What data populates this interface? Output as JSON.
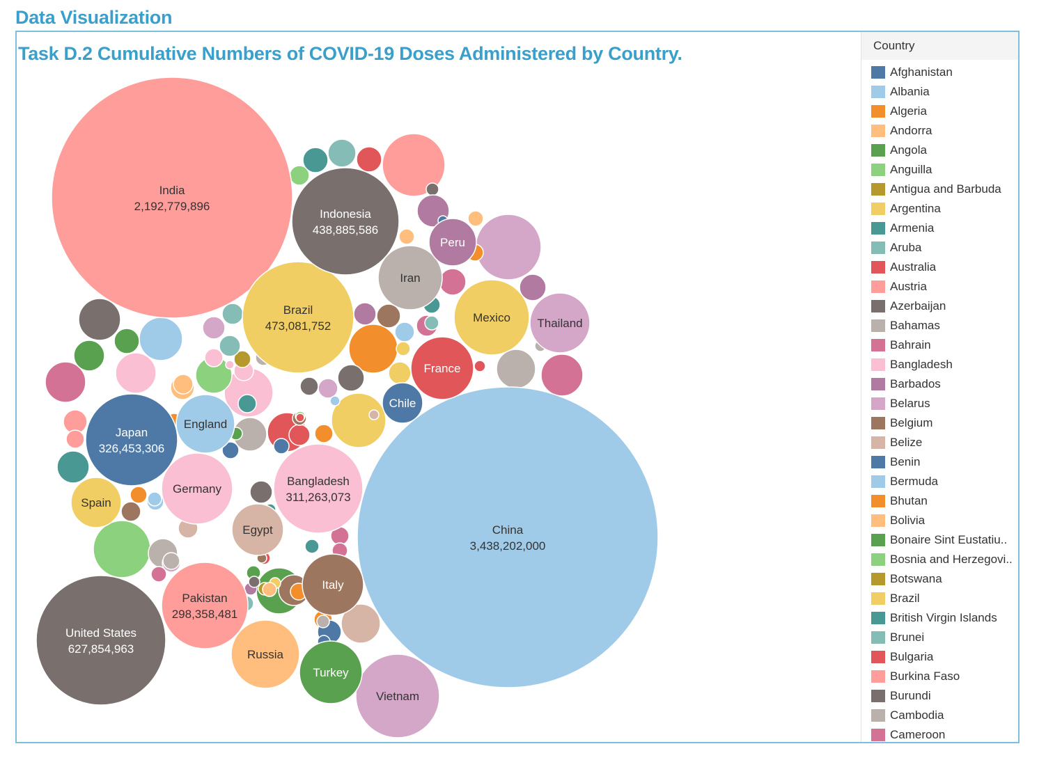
{
  "section_title": "Data Visualization",
  "chart_data": {
    "type": "bubble",
    "title": "Task D.2 Cumulative Numbers of COVID-19 Doses Administered by Country.",
    "legend_title": "Country",
    "legend_placement": "right",
    "legend": [
      {
        "name": "Afghanistan",
        "color": "#4e79a7"
      },
      {
        "name": "Albania",
        "color": "#a0cbe8"
      },
      {
        "name": "Algeria",
        "color": "#f28e2b"
      },
      {
        "name": "Andorra",
        "color": "#ffbe7d"
      },
      {
        "name": "Angola",
        "color": "#59a14f"
      },
      {
        "name": "Anguilla",
        "color": "#8cd17d"
      },
      {
        "name": "Antigua and Barbuda",
        "color": "#b6992d"
      },
      {
        "name": "Argentina",
        "color": "#f1ce63"
      },
      {
        "name": "Armenia",
        "color": "#499894"
      },
      {
        "name": "Aruba",
        "color": "#86bcb6"
      },
      {
        "name": "Australia",
        "color": "#e15759"
      },
      {
        "name": "Austria",
        "color": "#ff9d9a"
      },
      {
        "name": "Azerbaijan",
        "color": "#79706e"
      },
      {
        "name": "Bahamas",
        "color": "#bab0ac"
      },
      {
        "name": "Bahrain",
        "color": "#d37295"
      },
      {
        "name": "Bangladesh",
        "color": "#fabfd2"
      },
      {
        "name": "Barbados",
        "color": "#b07aa1"
      },
      {
        "name": "Belarus",
        "color": "#d4a6c8"
      },
      {
        "name": "Belgium",
        "color": "#9d7660"
      },
      {
        "name": "Belize",
        "color": "#d7b5a6"
      },
      {
        "name": "Benin",
        "color": "#4e79a7"
      },
      {
        "name": "Bermuda",
        "color": "#a0cbe8"
      },
      {
        "name": "Bhutan",
        "color": "#f28e2b"
      },
      {
        "name": "Bolivia",
        "color": "#ffbe7d"
      },
      {
        "name": "Bonaire Sint Eustatiu..",
        "color": "#59a14f"
      },
      {
        "name": "Bosnia and Herzegovi..",
        "color": "#8cd17d"
      },
      {
        "name": "Botswana",
        "color": "#b6992d"
      },
      {
        "name": "Brazil",
        "color": "#f1ce63"
      },
      {
        "name": "British Virgin Islands",
        "color": "#499894"
      },
      {
        "name": "Brunei",
        "color": "#86bcb6"
      },
      {
        "name": "Bulgaria",
        "color": "#e15759"
      },
      {
        "name": "Burkina Faso",
        "color": "#ff9d9a"
      },
      {
        "name": "Burundi",
        "color": "#79706e"
      },
      {
        "name": "Cambodia",
        "color": "#bab0ac"
      },
      {
        "name": "Cameroon",
        "color": "#d37295"
      }
    ],
    "labeled_points": [
      {
        "country": "China",
        "value": 3438202000,
        "value_label": "3,438,202,000",
        "color": "#a0cbe8"
      },
      {
        "country": "India",
        "value": 2192779896,
        "value_label": "2,192,779,896",
        "color": "#ff9d9a"
      },
      {
        "country": "United States",
        "value": 627854963,
        "value_label": "627,854,963",
        "color": "#79706e"
      },
      {
        "country": "Brazil",
        "value": 473081752,
        "value_label": "473,081,752",
        "color": "#f1ce63"
      },
      {
        "country": "Indonesia",
        "value": 438885586,
        "value_label": "438,885,586",
        "color": "#79706e"
      },
      {
        "country": "Japan",
        "value": 326453306,
        "value_label": "326,453,306",
        "color": "#4e79a7"
      },
      {
        "country": "Bangladesh",
        "value": 311263073,
        "value_label": "311,263,073",
        "color": "#fabfd2"
      },
      {
        "country": "Pakistan",
        "value": 298358481,
        "value_label": "298,358,481",
        "color": "#ff9d9a"
      },
      {
        "country": "Vietnam",
        "value_label": "",
        "color": "#d4a6c8"
      },
      {
        "country": "Mexico",
        "value_label": "",
        "color": "#f1ce63"
      },
      {
        "country": "Russia",
        "value_label": "",
        "color": "#ffbe7d"
      },
      {
        "country": "Germany",
        "value_label": "",
        "color": "#fabfd2"
      },
      {
        "country": "Iran",
        "value_label": "",
        "color": "#bab0ac"
      },
      {
        "country": "Turkey",
        "value_label": "",
        "color": "#59a14f"
      },
      {
        "country": "Italy",
        "value_label": "",
        "color": "#9d7660"
      },
      {
        "country": "France",
        "value_label": "",
        "color": "#e15759"
      },
      {
        "country": "Thailand",
        "value_label": "",
        "color": "#d4a6c8"
      },
      {
        "country": "England",
        "value_label": "",
        "color": "#a0cbe8"
      },
      {
        "country": "Egypt",
        "value_label": "",
        "color": "#d7b5a6"
      },
      {
        "country": "Peru",
        "value_label": "",
        "color": "#b07aa1"
      },
      {
        "country": "Spain",
        "value_label": "",
        "color": "#f1ce63"
      },
      {
        "country": "Chile",
        "value_label": "",
        "color": "#4e79a7"
      }
    ],
    "unlabeled_points": [
      {
        "color": "#d4a6c8"
      },
      {
        "color": "#ff9d9a"
      },
      {
        "color": "#d37295"
      },
      {
        "color": "#8cd17d"
      },
      {
        "color": "#79706e"
      },
      {
        "color": "#a0cbe8"
      },
      {
        "color": "#d37295"
      },
      {
        "color": "#bab0ac"
      },
      {
        "color": "#fabfd2"
      },
      {
        "color": "#fabfd2"
      },
      {
        "color": "#f28e2b"
      },
      {
        "color": "#f1ce63"
      },
      {
        "color": "#bab0ac"
      },
      {
        "color": "#e15759"
      },
      {
        "color": "#59a14f"
      },
      {
        "color": "#d7b5a6"
      },
      {
        "color": "#79706e"
      },
      {
        "color": "#8cd17d"
      },
      {
        "color": "#86bcb6"
      },
      {
        "color": "#499894"
      },
      {
        "color": "#86bcb6"
      },
      {
        "color": "#499894"
      },
      {
        "color": "#e15759"
      },
      {
        "color": "#8cd17d"
      },
      {
        "color": "#b07aa1"
      },
      {
        "color": "#d37295"
      },
      {
        "color": "#b07aa1"
      },
      {
        "color": "#59a14f"
      },
      {
        "color": "#59a14f"
      },
      {
        "color": "#d4a6c8"
      },
      {
        "color": "#ffbe7d"
      },
      {
        "color": "#fabfd2"
      },
      {
        "color": "#ff9d9a"
      },
      {
        "color": "#79706e"
      },
      {
        "color": "#9d7660"
      },
      {
        "color": "#d37295"
      },
      {
        "color": "#f28e2b"
      },
      {
        "color": "#4e79a7"
      },
      {
        "color": "#499894"
      },
      {
        "color": "#e15759"
      },
      {
        "color": "#9d7660"
      },
      {
        "color": "#d37295"
      },
      {
        "color": "#ffbe7d"
      },
      {
        "color": "#b07aa1"
      },
      {
        "color": "#a0cbe8"
      },
      {
        "color": "#bab0ac"
      },
      {
        "color": "#9d7660"
      },
      {
        "color": "#b6992d"
      },
      {
        "color": "#f28e2b"
      },
      {
        "color": "#fabfd2"
      },
      {
        "color": "#fabfd2"
      },
      {
        "color": "#d37295"
      },
      {
        "color": "#a0cbe8"
      },
      {
        "color": "#ffbe7d"
      },
      {
        "color": "#f28e2b"
      },
      {
        "color": "#4e79a7"
      },
      {
        "color": "#86bcb6"
      },
      {
        "color": "#499894"
      },
      {
        "color": "#79706e"
      },
      {
        "color": "#d4a6c8"
      },
      {
        "color": "#e15759"
      },
      {
        "color": "#bab0ac"
      },
      {
        "color": "#f1ce63"
      },
      {
        "color": "#f28e2b"
      },
      {
        "color": "#79706e"
      },
      {
        "color": "#4e79a7"
      },
      {
        "color": "#4e79a7"
      },
      {
        "color": "#a0cbe8"
      },
      {
        "color": "#ffbe7d"
      },
      {
        "color": "#d7b5a6"
      },
      {
        "color": "#d37295"
      },
      {
        "color": "#9d7660"
      },
      {
        "color": "#f1ce63"
      },
      {
        "color": "#8cd17d"
      },
      {
        "color": "#ff9d9a"
      },
      {
        "color": "#59a14f"
      },
      {
        "color": "#b6992d"
      },
      {
        "color": "#d4a6c8"
      },
      {
        "color": "#d37295"
      },
      {
        "color": "#bab0ac"
      },
      {
        "color": "#499894"
      },
      {
        "color": "#59a14f"
      },
      {
        "color": "#f28e2b"
      },
      {
        "color": "#b07aa1"
      },
      {
        "color": "#86bcb6"
      },
      {
        "color": "#f1ce63"
      },
      {
        "color": "#ffbe7d"
      },
      {
        "color": "#e15759"
      },
      {
        "color": "#a0cbe8"
      },
      {
        "color": "#d7b5a6"
      },
      {
        "color": "#4e79a7"
      },
      {
        "color": "#f28e2b"
      },
      {
        "color": "#a0cbe8"
      },
      {
        "color": "#bab0ac"
      },
      {
        "color": "#fabfd2"
      },
      {
        "color": "#9d7660"
      },
      {
        "color": "#e15759"
      },
      {
        "color": "#b07aa1"
      },
      {
        "color": "#499894"
      },
      {
        "color": "#d7b5a6"
      },
      {
        "color": "#79706e"
      },
      {
        "color": "#bab0ac"
      },
      {
        "color": "#d37295"
      },
      {
        "color": "#86bcb6"
      }
    ]
  }
}
